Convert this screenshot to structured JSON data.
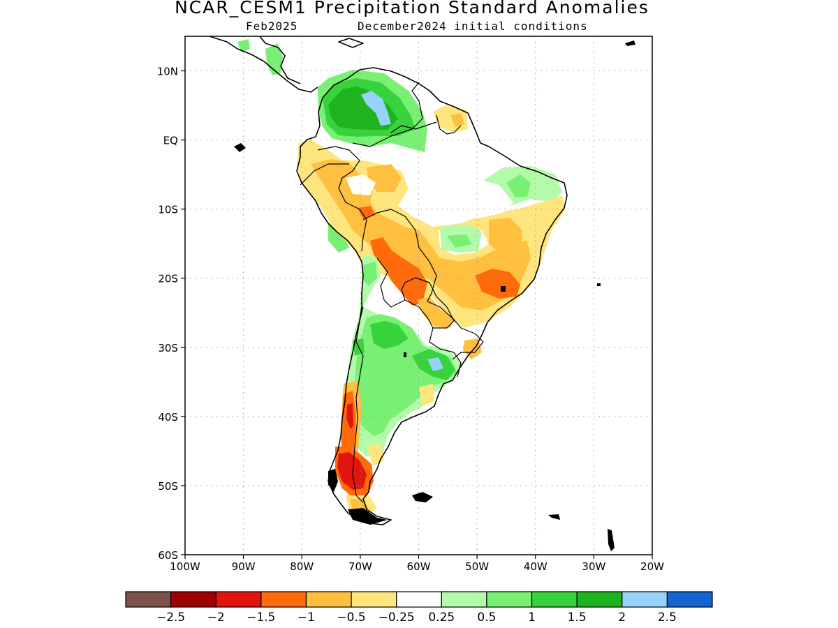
{
  "title": "NCAR_CESM1 Precipitation Standard Anomalies",
  "subtitle_left": "Feb2025",
  "subtitle_right": "December2024 initial conditions",
  "map": {
    "lon_range": [
      -100,
      -20
    ],
    "lat_range": [
      -60,
      15
    ],
    "lat_labels": [
      "10N",
      "EQ",
      "10S",
      "20S",
      "30S",
      "40S",
      "50S",
      "60S"
    ],
    "lat_values": [
      10,
      0,
      -10,
      -20,
      -30,
      -40,
      -50,
      -60
    ],
    "lon_labels": [
      "100W",
      "90W",
      "80W",
      "70W",
      "60W",
      "50W",
      "40W",
      "30W",
      "20W"
    ],
    "lon_values": [
      -100,
      -90,
      -80,
      -70,
      -60,
      -50,
      -40,
      -30,
      -20
    ]
  },
  "colorbar": {
    "colors": [
      "#7b5349",
      "#a00000",
      "#e0150e",
      "#ff6a0b",
      "#ffc040",
      "#ffe57d",
      "#ffffff",
      "#b3faaa",
      "#78f073",
      "#37d23c",
      "#1eb41e",
      "#96d2fa",
      "#1464d2"
    ],
    "labels": [
      "−2.5",
      "−2",
      "−1.5",
      "−1",
      "−0.5",
      "−0.25",
      "0.25",
      "0.5",
      "1",
      "1.5",
      "2",
      "2.5"
    ]
  }
}
